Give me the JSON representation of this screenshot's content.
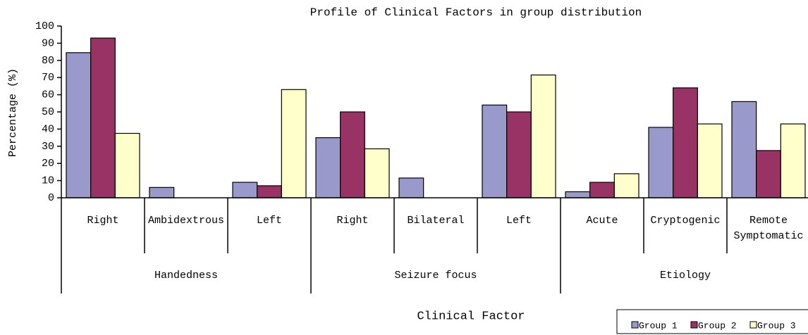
{
  "chart_data": {
    "type": "bar",
    "title": "Profile of Clinical Factors in group distribution",
    "x_label": "Clinical Factor",
    "y_label": "Percentage (%)",
    "categories": [
      "Right",
      "Ambidextrous",
      "Left",
      "Right",
      "Bilateral",
      "Left",
      "Acute",
      "Cryptogenic",
      "Remote Symptomatic"
    ],
    "groups": [
      "Handedness",
      "Seizure focus",
      "Etiology"
    ],
    "series": [
      {
        "name": "Group 1",
        "color": "#9999cc",
        "values": [
          84.5,
          6,
          9,
          35,
          11.5,
          54,
          3.5,
          41,
          56
        ]
      },
      {
        "name": "Group 2",
        "color": "#993366",
        "values": [
          93,
          0,
          7,
          50,
          0,
          50,
          9,
          64,
          27.5
        ]
      },
      {
        "name": "Group 3",
        "color": "#ffffcc",
        "values": [
          37.5,
          0,
          63,
          28.5,
          0,
          71.5,
          14,
          43,
          43
        ]
      }
    ],
    "ylim": [
      0,
      100
    ],
    "yticks": [
      0,
      10,
      20,
      30,
      40,
      50,
      60,
      70,
      80,
      90,
      100
    ],
    "legend": "bottom-right"
  }
}
